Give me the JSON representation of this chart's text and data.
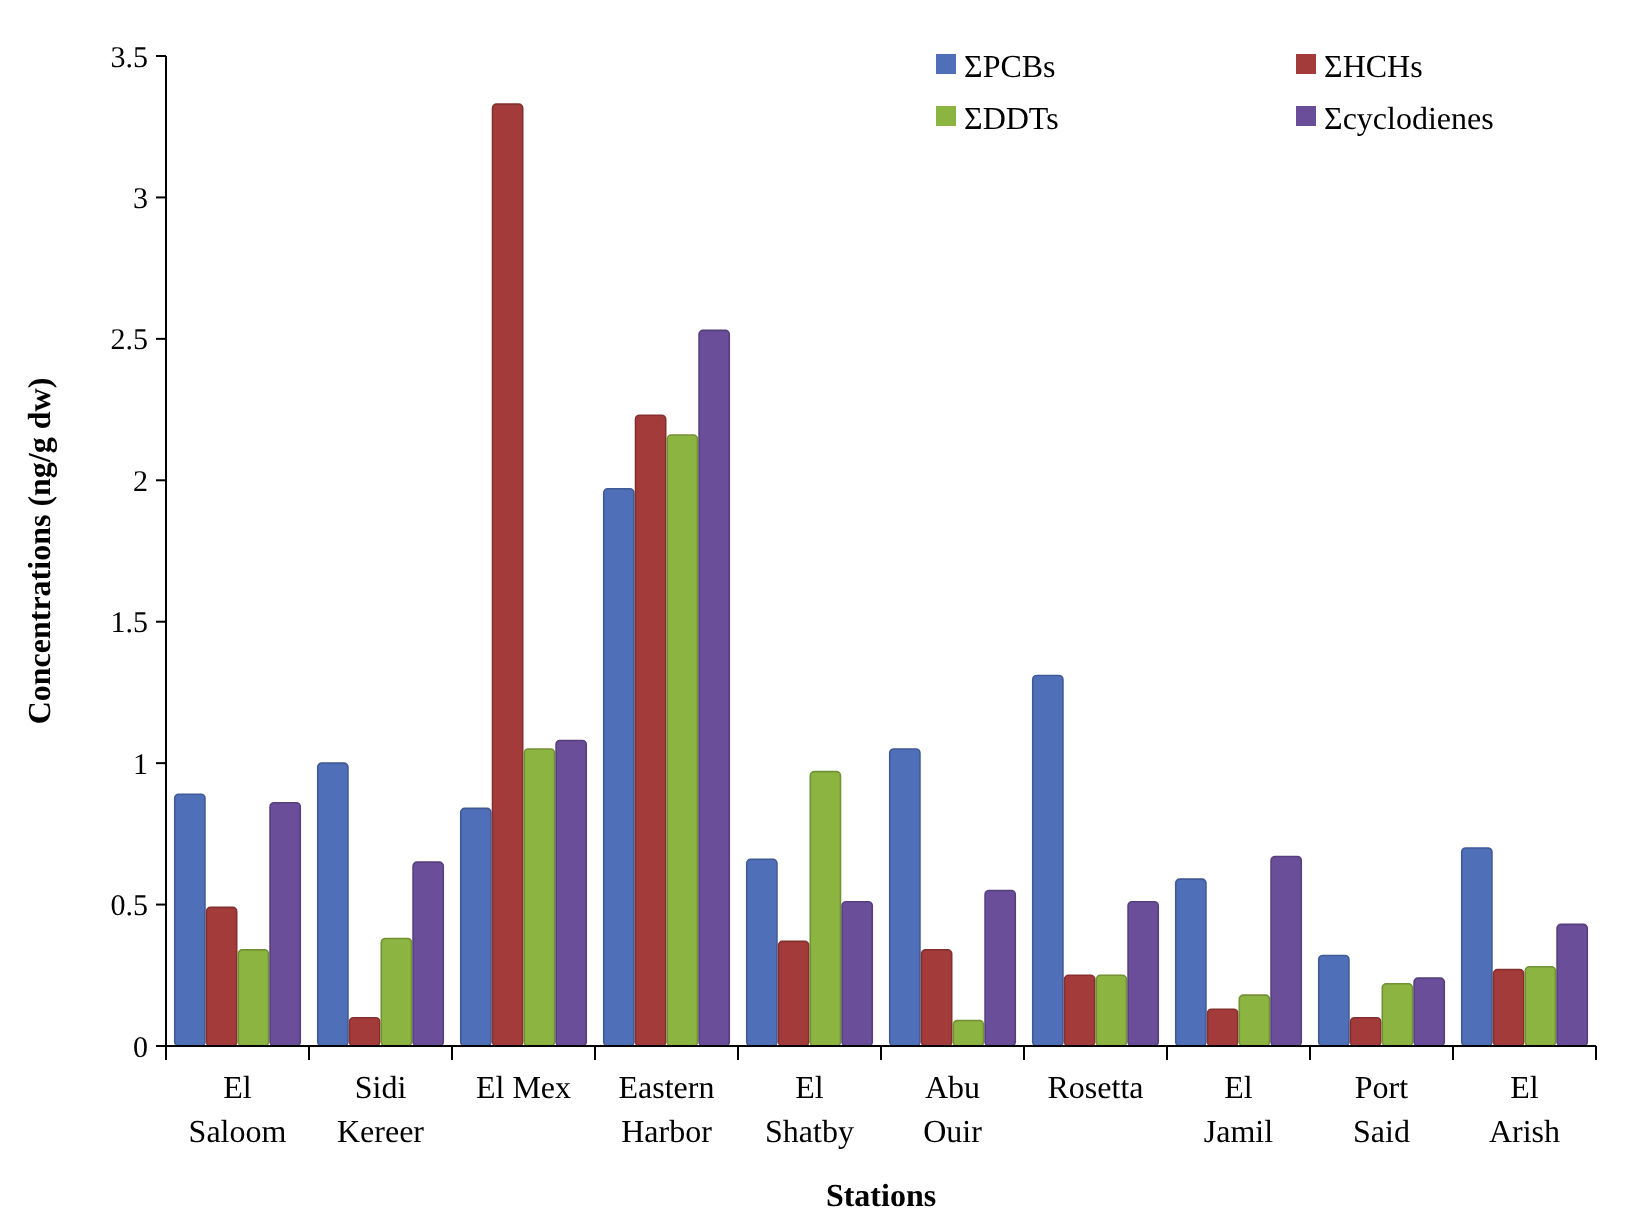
{
  "chart_data": {
    "type": "bar",
    "xlabel": "Stations",
    "ylabel": "Concentrations (ng/g dw)",
    "categories": [
      "El Saloom",
      "Sidi Kereer",
      "El Mex",
      "Eastern Harbor",
      "El Shatby",
      "Abu Ouir",
      "Rosetta",
      "El Jamil",
      "Port Said",
      "El Arish"
    ],
    "series": [
      {
        "name": "ΣPCBs",
        "color": "#4f6fb8",
        "values": [
          0.89,
          1.0,
          0.84,
          1.97,
          0.66,
          1.05,
          1.31,
          0.59,
          0.32,
          0.7
        ]
      },
      {
        "name": "ΣHCHs",
        "color": "#a33b3a",
        "values": [
          0.49,
          0.1,
          3.33,
          2.23,
          0.37,
          0.34,
          0.25,
          0.13,
          0.1,
          0.27
        ]
      },
      {
        "name": "ΣDDTs",
        "color": "#8cb440",
        "values": [
          0.34,
          0.38,
          1.05,
          2.16,
          0.97,
          0.09,
          0.25,
          0.18,
          0.22,
          0.28
        ]
      },
      {
        "name": "Σcyclodienes",
        "color": "#6a4e9a",
        "values": [
          0.86,
          0.65,
          1.08,
          2.53,
          0.51,
          0.55,
          0.51,
          0.67,
          0.24,
          0.43
        ]
      }
    ],
    "ylim": [
      0,
      3.5
    ],
    "yticks": [
      0,
      0.5,
      1,
      1.5,
      2,
      2.5,
      3,
      3.5
    ],
    "grid": false,
    "legend": "top right"
  }
}
